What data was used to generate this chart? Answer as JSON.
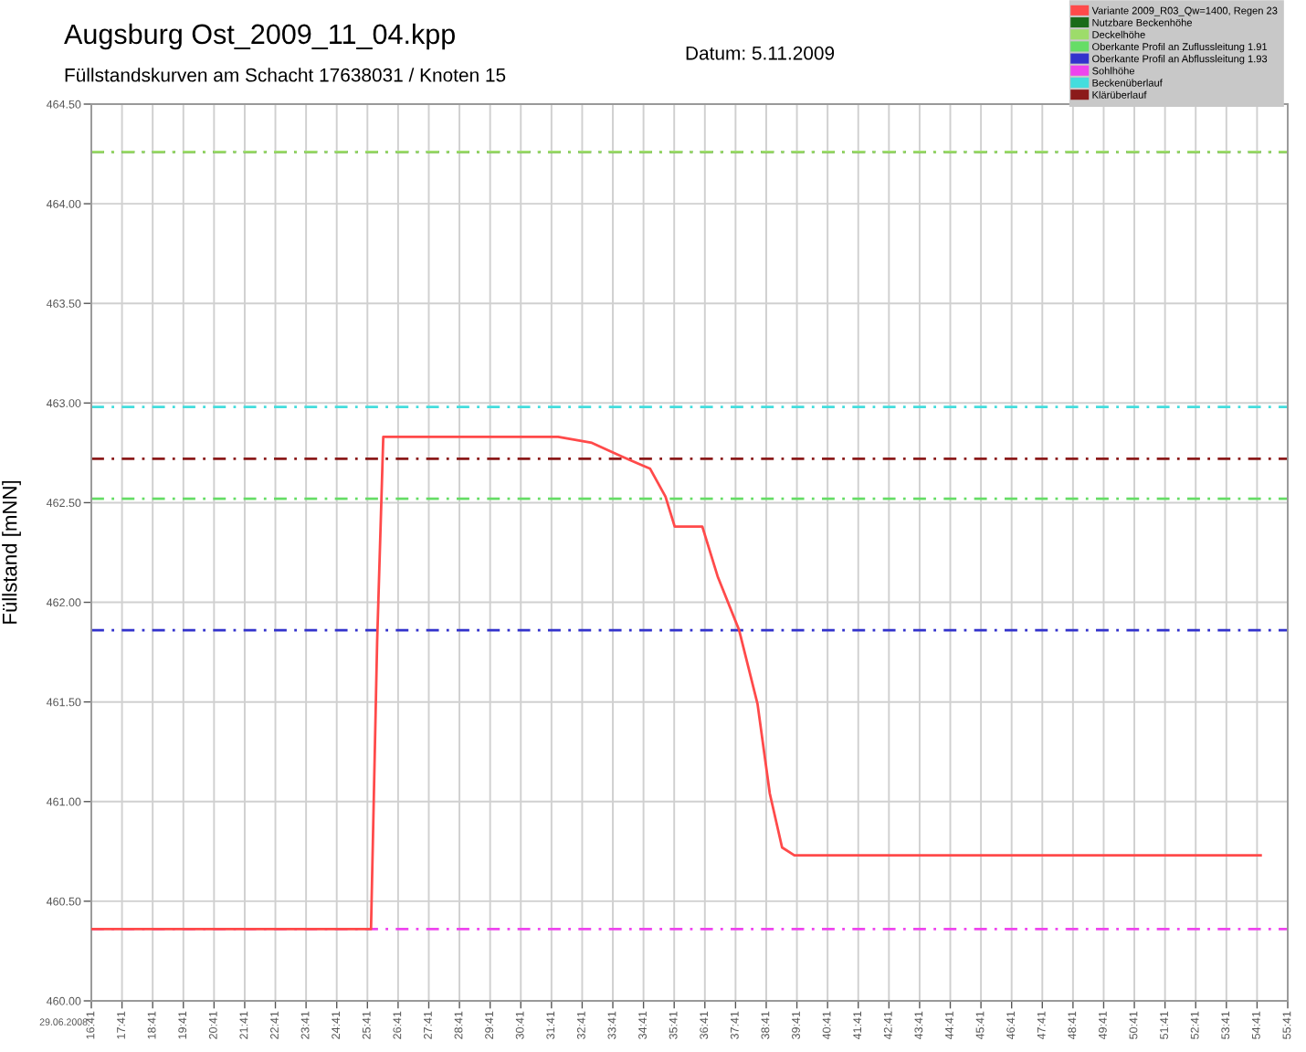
{
  "chart_data": {
    "type": "line",
    "title": "Augsburg Ost_2009_11_04.kpp",
    "subtitle": "Füllstandskurven am Schacht 17638031 / Knoten 15",
    "ylabel": "Füllstand [mNN]",
    "annotations": [
      "Datum: 5.11.2009",
      "29.06.2008"
    ],
    "series": [
      {
        "name": "Variante 2009_R03_Qw=1400, Regen 23",
        "color": "#ff4a4a",
        "x": [
          16.69,
          25.8,
          26.0,
          26.2,
          31.9,
          33.0,
          34.0,
          34.9,
          35.4,
          35.7,
          36.6,
          37.1,
          37.8,
          38.4,
          38.8,
          39.2,
          39.6,
          54.8
        ],
        "values": [
          460.36,
          460.36,
          461.8,
          462.83,
          462.83,
          462.8,
          462.73,
          462.67,
          462.53,
          462.38,
          462.38,
          462.13,
          461.86,
          461.49,
          461.04,
          460.77,
          460.73,
          460.73
        ]
      }
    ],
    "ref_lines": [
      {
        "axis": "y",
        "value": 464.26,
        "label": "Nutzbare Beckenhöhe",
        "color": "#1a6b1a",
        "line_style": "dashed"
      },
      {
        "axis": "y",
        "value": 464.26,
        "label": "Deckelhöhe",
        "color": "#9ddc6a",
        "line_style": "dashed"
      },
      {
        "axis": "y",
        "value": 462.52,
        "label": "Oberkante Profil an Zuflussleitung 1.91",
        "color": "#66dd66",
        "line_style": "dashed"
      },
      {
        "axis": "y",
        "value": 461.86,
        "label": "Oberkante Profil an Abflussleitung 1.93",
        "color": "#3333cc",
        "line_style": "dashed"
      },
      {
        "axis": "y",
        "value": 460.36,
        "label": "Sohlhöhe",
        "color": "#ee44ee",
        "line_style": "dashed"
      },
      {
        "axis": "y",
        "value": 462.98,
        "label": "Beckenüberlauf",
        "color": "#44dddd",
        "line_style": "dashed"
      },
      {
        "axis": "y",
        "value": 462.72,
        "label": "Klärüberlauf",
        "color": "#8b1a1a",
        "line_style": "dashed"
      }
    ],
    "xlim": [
      16.6833,
      55.6833
    ],
    "xticks": [
      {
        "value": 16.6833,
        "label": "16:41"
      },
      {
        "value": 17.6833,
        "label": "17:41"
      },
      {
        "value": 18.6833,
        "label": "18:41"
      },
      {
        "value": 19.6833,
        "label": "19:41"
      },
      {
        "value": 20.6833,
        "label": "20:41"
      },
      {
        "value": 21.6833,
        "label": "21:41"
      },
      {
        "value": 22.6833,
        "label": "22:41"
      },
      {
        "value": 23.6833,
        "label": "23:41"
      },
      {
        "value": 24.6833,
        "label": "24:41"
      },
      {
        "value": 25.6833,
        "label": "25:41"
      },
      {
        "value": 26.6833,
        "label": "26:41"
      },
      {
        "value": 27.6833,
        "label": "27:41"
      },
      {
        "value": 28.6833,
        "label": "28:41"
      },
      {
        "value": 29.6833,
        "label": "29:41"
      },
      {
        "value": 30.6833,
        "label": "30:41"
      },
      {
        "value": 31.6833,
        "label": "31:41"
      },
      {
        "value": 32.6833,
        "label": "32:41"
      },
      {
        "value": 33.6833,
        "label": "33:41"
      },
      {
        "value": 34.6833,
        "label": "34:41"
      },
      {
        "value": 35.6833,
        "label": "35:41"
      },
      {
        "value": 36.6833,
        "label": "36:41"
      },
      {
        "value": 37.6833,
        "label": "37:41"
      },
      {
        "value": 38.6833,
        "label": "38:41"
      },
      {
        "value": 39.6833,
        "label": "39:41"
      },
      {
        "value": 40.6833,
        "label": "40:41"
      },
      {
        "value": 41.6833,
        "label": "41:41"
      },
      {
        "value": 42.6833,
        "label": "42:41"
      },
      {
        "value": 43.6833,
        "label": "43:41"
      },
      {
        "value": 44.6833,
        "label": "44:41"
      },
      {
        "value": 45.6833,
        "label": "45:41"
      },
      {
        "value": 46.6833,
        "label": "46:41"
      },
      {
        "value": 47.6833,
        "label": "47:41"
      },
      {
        "value": 48.6833,
        "label": "48:41"
      },
      {
        "value": 49.6833,
        "label": "49:41"
      },
      {
        "value": 50.6833,
        "label": "50:41"
      },
      {
        "value": 51.6833,
        "label": "51:41"
      },
      {
        "value": 52.6833,
        "label": "52:41"
      },
      {
        "value": 53.6833,
        "label": "53:41"
      },
      {
        "value": 54.6833,
        "label": "54:41"
      },
      {
        "value": 55.6833,
        "label": "55:41"
      }
    ],
    "ylim": [
      460,
      464.5
    ],
    "yticks": [
      {
        "value": 460,
        "label": "460.00"
      },
      {
        "value": 460.5,
        "label": "460.50"
      },
      {
        "value": 461,
        "label": "461.00"
      },
      {
        "value": 461.5,
        "label": "461.50"
      },
      {
        "value": 462,
        "label": "462.00"
      },
      {
        "value": 462.5,
        "label": "462.50"
      },
      {
        "value": 463,
        "label": "463.00"
      },
      {
        "value": 463.5,
        "label": "463.50"
      },
      {
        "value": 464,
        "label": "464.00"
      },
      {
        "value": 464.5,
        "label": "464.50"
      }
    ],
    "grid": true,
    "legend": "top right",
    "marker": "none",
    "line_style": "solid"
  }
}
